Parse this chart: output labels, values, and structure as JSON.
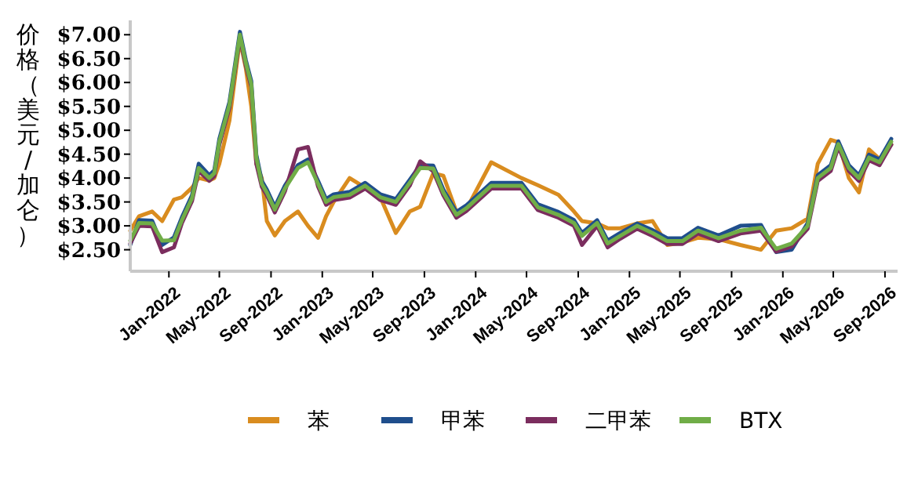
{
  "chart_data": {
    "type": "line",
    "ylabel": "价格（美元/加仑）",
    "x": [
      "2021-10-01",
      "2021-10-22",
      "2021-11-22",
      "2021-12-16",
      "2022-01-13",
      "2022-02-01",
      "2022-02-25",
      "2022-03-13",
      "2022-04-07",
      "2022-04-19",
      "2022-05-01",
      "2022-05-25",
      "2022-06-19",
      "2022-07-03",
      "2022-07-16",
      "2022-07-28",
      "2022-08-10",
      "2022-08-22",
      "2022-09-10",
      "2022-10-04",
      "2022-11-04",
      "2022-11-28",
      "2022-12-22",
      "2023-01-10",
      "2023-01-28",
      "2023-03-07",
      "2023-04-13",
      "2023-05-19",
      "2023-06-25",
      "2023-07-28",
      "2023-08-22",
      "2023-09-22",
      "2023-10-16",
      "2023-11-16",
      "2023-12-10",
      "2024-02-07",
      "2024-04-19",
      "2024-05-28",
      "2024-07-16",
      "2024-08-22",
      "2024-09-10",
      "2024-10-16",
      "2024-11-10",
      "2024-12-10",
      "2025-01-19",
      "2025-02-25",
      "2025-04-01",
      "2025-05-07",
      "2025-06-13",
      "2025-08-01",
      "2025-09-22",
      "2025-11-10",
      "2025-12-16",
      "2026-01-22",
      "2026-03-01",
      "2026-03-25",
      "2026-04-25",
      "2026-05-13",
      "2026-06-07",
      "2026-07-01",
      "2026-07-25",
      "2026-08-19",
      "2026-09-16"
    ],
    "series": [
      {
        "name": "苯",
        "color": "#d98c1f",
        "values": [
          2.9,
          3.2,
          3.3,
          3.1,
          3.55,
          3.6,
          3.8,
          4.0,
          3.95,
          4.0,
          4.3,
          5.2,
          6.9,
          6.3,
          5.5,
          4.3,
          4.0,
          3.1,
          2.8,
          3.1,
          3.3,
          3.0,
          2.75,
          3.2,
          3.5,
          4.0,
          3.8,
          3.6,
          2.85,
          3.3,
          3.4,
          4.1,
          4.05,
          3.3,
          3.35,
          4.33,
          4.0,
          3.85,
          3.65,
          3.3,
          3.1,
          3.05,
          2.95,
          2.95,
          3.05,
          3.1,
          2.6,
          2.65,
          2.75,
          2.72,
          2.6,
          2.5,
          2.9,
          2.95,
          3.15,
          4.3,
          4.8,
          4.75,
          4.0,
          3.7,
          4.6,
          4.4,
          4.7
        ]
      },
      {
        "name": "甲苯",
        "color": "#1f4e8c",
        "values": [
          2.6,
          3.12,
          3.11,
          2.6,
          2.76,
          3.18,
          3.64,
          4.3,
          4.06,
          4.16,
          4.82,
          5.59,
          7.06,
          6.47,
          6.03,
          4.49,
          3.94,
          3.76,
          3.4,
          3.84,
          4.27,
          4.39,
          3.94,
          3.56,
          3.66,
          3.71,
          3.9,
          3.66,
          3.56,
          3.96,
          4.27,
          4.26,
          3.76,
          3.29,
          3.43,
          3.9,
          3.9,
          3.45,
          3.29,
          3.12,
          2.85,
          3.12,
          2.69,
          2.85,
          3.05,
          2.91,
          2.74,
          2.74,
          2.96,
          2.8,
          3.0,
          3.02,
          2.45,
          2.5,
          3.06,
          4.06,
          4.27,
          4.77,
          4.27,
          4.06,
          4.49,
          4.39,
          4.82
        ]
      },
      {
        "name": "二甲苯",
        "color": "#7b2d5e",
        "values": [
          2.63,
          3.0,
          2.99,
          2.45,
          2.55,
          3.06,
          3.52,
          4.15,
          3.94,
          4.04,
          4.7,
          5.47,
          6.94,
          6.35,
          5.91,
          4.3,
          3.82,
          3.64,
          3.28,
          3.72,
          4.6,
          4.65,
          3.82,
          3.44,
          3.54,
          3.59,
          3.78,
          3.54,
          3.44,
          3.84,
          4.35,
          4.14,
          3.64,
          3.17,
          3.31,
          3.78,
          3.78,
          3.33,
          3.17,
          3.0,
          2.6,
          3.0,
          2.55,
          2.73,
          2.94,
          2.79,
          2.62,
          2.62,
          2.84,
          2.68,
          2.84,
          2.9,
          2.46,
          2.57,
          2.94,
          3.94,
          4.15,
          4.65,
          4.15,
          3.94,
          4.37,
          4.27,
          4.7
        ]
      },
      {
        "name": "BTX",
        "color": "#70ad47",
        "values": [
          2.69,
          3.06,
          3.05,
          2.69,
          2.7,
          3.12,
          3.58,
          4.21,
          4.0,
          4.1,
          4.76,
          5.53,
          7.0,
          6.41,
          5.97,
          4.43,
          3.88,
          3.7,
          3.34,
          3.78,
          4.21,
          4.33,
          3.88,
          3.5,
          3.6,
          3.65,
          3.84,
          3.6,
          3.5,
          3.9,
          4.21,
          4.2,
          3.7,
          3.23,
          3.37,
          3.84,
          3.84,
          3.39,
          3.23,
          3.06,
          2.79,
          3.06,
          2.63,
          2.79,
          3.0,
          2.85,
          2.68,
          2.68,
          2.9,
          2.74,
          2.9,
          2.96,
          2.52,
          2.63,
          3.0,
          4.0,
          4.21,
          4.71,
          4.21,
          4.0,
          4.43,
          4.33,
          4.76
        ]
      }
    ],
    "xlim": [
      "2021-10-01",
      "2026-10-01"
    ],
    "xticks": [
      {
        "value": "2022-01",
        "label": "Jan-2022"
      },
      {
        "value": "2022-05",
        "label": "May-2022"
      },
      {
        "value": "2022-09",
        "label": "Sep-2022"
      },
      {
        "value": "2023-01",
        "label": "Jan-2023"
      },
      {
        "value": "2023-05",
        "label": "May-2023"
      },
      {
        "value": "2023-09",
        "label": "Sep-2023"
      },
      {
        "value": "2024-01",
        "label": "Jan-2024"
      },
      {
        "value": "2024-05",
        "label": "May-2024"
      },
      {
        "value": "2024-09",
        "label": "Sep-2024"
      },
      {
        "value": "2025-01",
        "label": "Jan-2025"
      },
      {
        "value": "2025-05",
        "label": "May-2025"
      },
      {
        "value": "2025-09",
        "label": "Sep-2025"
      },
      {
        "value": "2026-01",
        "label": "Jan-2026"
      },
      {
        "value": "2026-05",
        "label": "May-2026"
      },
      {
        "value": "2026-09",
        "label": "Sep-2026"
      }
    ],
    "ylim": [
      2.05,
      7.3
    ],
    "yticks": [
      {
        "value": 2.5,
        "label": "$2.50"
      },
      {
        "value": 3,
        "label": "$3.00"
      },
      {
        "value": 3.5,
        "label": "$3.50"
      },
      {
        "value": 4,
        "label": "$4.00"
      },
      {
        "value": 4.5,
        "label": "$4.50"
      },
      {
        "value": 5,
        "label": "$5.00"
      },
      {
        "value": 5.5,
        "label": "$5.50"
      },
      {
        "value": 6,
        "label": "$6.00"
      },
      {
        "value": 6.5,
        "label": "$6.50"
      },
      {
        "value": 7,
        "label": "$7.00"
      }
    ],
    "grid": false,
    "legend": "bottom",
    "marker": "none",
    "line_style": "solid"
  }
}
